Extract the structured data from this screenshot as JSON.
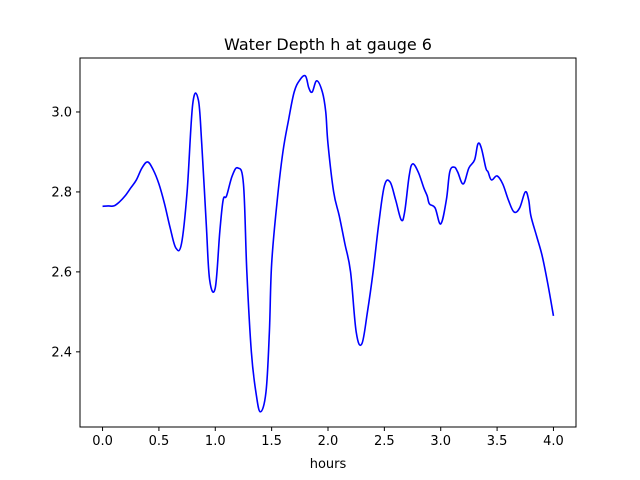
{
  "chart_data": {
    "type": "line",
    "title": "Water Depth h at gauge 6",
    "xlabel": "hours",
    "ylabel": "",
    "xlim": [
      -0.2,
      4.2
    ],
    "ylim": [
      2.212,
      3.135
    ],
    "xticks": [
      0.0,
      0.5,
      1.0,
      1.5,
      2.0,
      2.5,
      3.0,
      3.5,
      4.0
    ],
    "xtick_labels": [
      "0.0",
      "0.5",
      "1.0",
      "1.5",
      "2.0",
      "2.5",
      "3.0",
      "3.5",
      "4.0"
    ],
    "yticks": [
      2.4,
      2.6,
      2.8,
      3.0
    ],
    "ytick_labels": [
      "2.4",
      "2.6",
      "2.8",
      "3.0"
    ],
    "grid": false,
    "legend": "none",
    "series": [
      {
        "color": "#0000ff",
        "x": [
          0.0,
          0.05,
          0.1,
          0.15,
          0.2,
          0.25,
          0.3,
          0.35,
          0.4,
          0.45,
          0.5,
          0.55,
          0.6,
          0.65,
          0.7,
          0.75,
          0.8,
          0.85,
          0.88,
          0.92,
          0.95,
          1.0,
          1.04,
          1.07,
          1.1,
          1.15,
          1.2,
          1.25,
          1.28,
          1.32,
          1.36,
          1.4,
          1.45,
          1.48,
          1.5,
          1.55,
          1.6,
          1.65,
          1.7,
          1.75,
          1.8,
          1.83,
          1.86,
          1.9,
          1.95,
          1.98,
          2.0,
          2.05,
          2.1,
          2.15,
          2.2,
          2.25,
          2.3,
          2.35,
          2.4,
          2.45,
          2.5,
          2.55,
          2.6,
          2.65,
          2.68,
          2.72,
          2.75,
          2.8,
          2.85,
          2.88,
          2.9,
          2.95,
          3.0,
          3.05,
          3.08,
          3.12,
          3.15,
          3.2,
          3.25,
          3.3,
          3.33,
          3.36,
          3.4,
          3.42,
          3.45,
          3.5,
          3.55,
          3.6,
          3.65,
          3.7,
          3.75,
          3.78,
          3.8,
          3.85,
          3.9,
          3.95,
          4.0
        ],
        "y": [
          2.764,
          2.765,
          2.765,
          2.775,
          2.79,
          2.81,
          2.83,
          2.86,
          2.875,
          2.855,
          2.82,
          2.77,
          2.71,
          2.66,
          2.67,
          2.8,
          3.02,
          3.03,
          2.92,
          2.72,
          2.58,
          2.56,
          2.7,
          2.78,
          2.79,
          2.84,
          2.86,
          2.82,
          2.6,
          2.4,
          2.3,
          2.25,
          2.3,
          2.45,
          2.62,
          2.78,
          2.9,
          2.98,
          3.05,
          3.08,
          3.09,
          3.06,
          3.05,
          3.078,
          3.05,
          3.0,
          2.92,
          2.8,
          2.74,
          2.67,
          2.6,
          2.45,
          2.42,
          2.5,
          2.6,
          2.72,
          2.815,
          2.825,
          2.78,
          2.73,
          2.75,
          2.84,
          2.87,
          2.85,
          2.81,
          2.79,
          2.77,
          2.76,
          2.72,
          2.78,
          2.85,
          2.862,
          2.85,
          2.82,
          2.86,
          2.88,
          2.92,
          2.91,
          2.86,
          2.85,
          2.83,
          2.84,
          2.82,
          2.78,
          2.75,
          2.76,
          2.8,
          2.78,
          2.74,
          2.69,
          2.64,
          2.57,
          2.49
        ]
      }
    ]
  }
}
